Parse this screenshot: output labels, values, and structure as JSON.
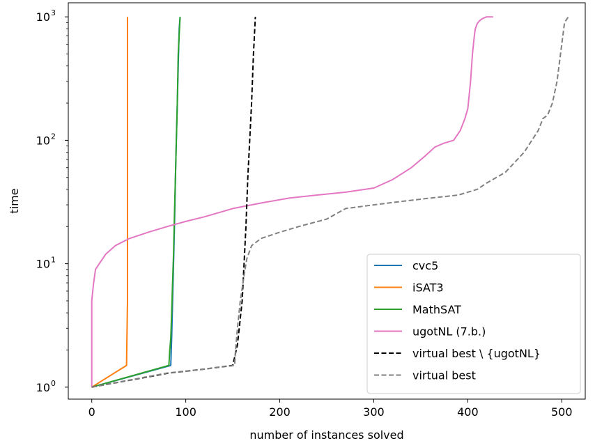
{
  "chart_data": {
    "type": "line",
    "xlabel": "number of instances solved",
    "ylabel": "time",
    "y_scale": "log",
    "xlim": [
      -25,
      525
    ],
    "ylim": [
      0.8,
      1300
    ],
    "x_ticks": [
      0,
      100,
      200,
      300,
      400,
      500
    ],
    "y_ticks": [
      {
        "value": 1,
        "base": "10",
        "exp": "0"
      },
      {
        "value": 10,
        "base": "10",
        "exp": "1"
      },
      {
        "value": 100,
        "base": "10",
        "exp": "2"
      },
      {
        "value": 1000,
        "base": "10",
        "exp": "3"
      }
    ],
    "grid": false,
    "legend_position": "lower-right",
    "series": [
      {
        "name": "cvc5",
        "color": "#1f77b4",
        "dash": false,
        "x": [
          0,
          84,
          85,
          86,
          87,
          88,
          89,
          90,
          91,
          92,
          93,
          94
        ],
        "y": [
          1.0,
          1.5,
          2.5,
          5,
          10,
          20,
          50,
          100,
          200,
          400,
          800,
          1000
        ]
      },
      {
        "name": "iSAT3",
        "color": "#ff7f0e",
        "dash": false,
        "x": [
          0,
          37,
          38,
          38
        ],
        "y": [
          1.0,
          1.5,
          5,
          1000
        ]
      },
      {
        "name": "MathSAT",
        "color": "#2ca02c",
        "dash": false,
        "x": [
          0,
          82,
          83,
          84,
          85,
          86,
          87,
          88,
          89,
          90,
          91,
          92,
          94
        ],
        "y": [
          1.0,
          1.5,
          2.0,
          2.5,
          4,
          7,
          12,
          25,
          50,
          100,
          200,
          500,
          1000
        ]
      },
      {
        "name": "ugotNL (7.b.)",
        "color": "#e377c2",
        "dash": false,
        "x": [
          0,
          0,
          1,
          2,
          4,
          8,
          15,
          25,
          40,
          60,
          80,
          100,
          120,
          150,
          180,
          210,
          240,
          270,
          300,
          320,
          340,
          355,
          365,
          375,
          385,
          392,
          397,
          400,
          403,
          405,
          407,
          408,
          410,
          412,
          414,
          416,
          420,
          427
        ],
        "y": [
          1.0,
          5,
          6,
          7,
          9,
          10,
          12,
          14,
          16,
          18,
          20,
          22,
          24,
          28,
          31,
          34,
          36,
          38,
          41,
          48,
          60,
          75,
          88,
          95,
          100,
          120,
          150,
          180,
          300,
          500,
          700,
          800,
          880,
          920,
          950,
          970,
          1000,
          1000
        ]
      },
      {
        "name": "virtual best \\ {ugotNL}",
        "color": "#000000",
        "dash": true,
        "x": [
          0,
          82,
          120,
          150,
          155,
          160,
          162,
          164,
          166,
          168,
          170,
          172,
          174
        ],
        "y": [
          1.0,
          1.3,
          1.4,
          1.5,
          2.2,
          5,
          10,
          20,
          50,
          100,
          200,
          500,
          1000
        ]
      },
      {
        "name": "virtual best",
        "color": "#808080",
        "dash": true,
        "x": [
          0,
          80,
          120,
          152,
          153,
          155,
          158,
          162,
          165,
          170,
          180,
          200,
          220,
          250,
          270,
          300,
          330,
          360,
          390,
          410,
          420,
          440,
          460,
          475,
          480,
          485,
          490,
          495,
          500,
          503,
          507
        ],
        "y": [
          1.0,
          1.3,
          1.4,
          1.5,
          2,
          3,
          5,
          8,
          11,
          14,
          16,
          18,
          20,
          23,
          28,
          30,
          32,
          34,
          36,
          40,
          45,
          55,
          80,
          120,
          150,
          160,
          200,
          300,
          600,
          900,
          1000
        ]
      }
    ]
  }
}
